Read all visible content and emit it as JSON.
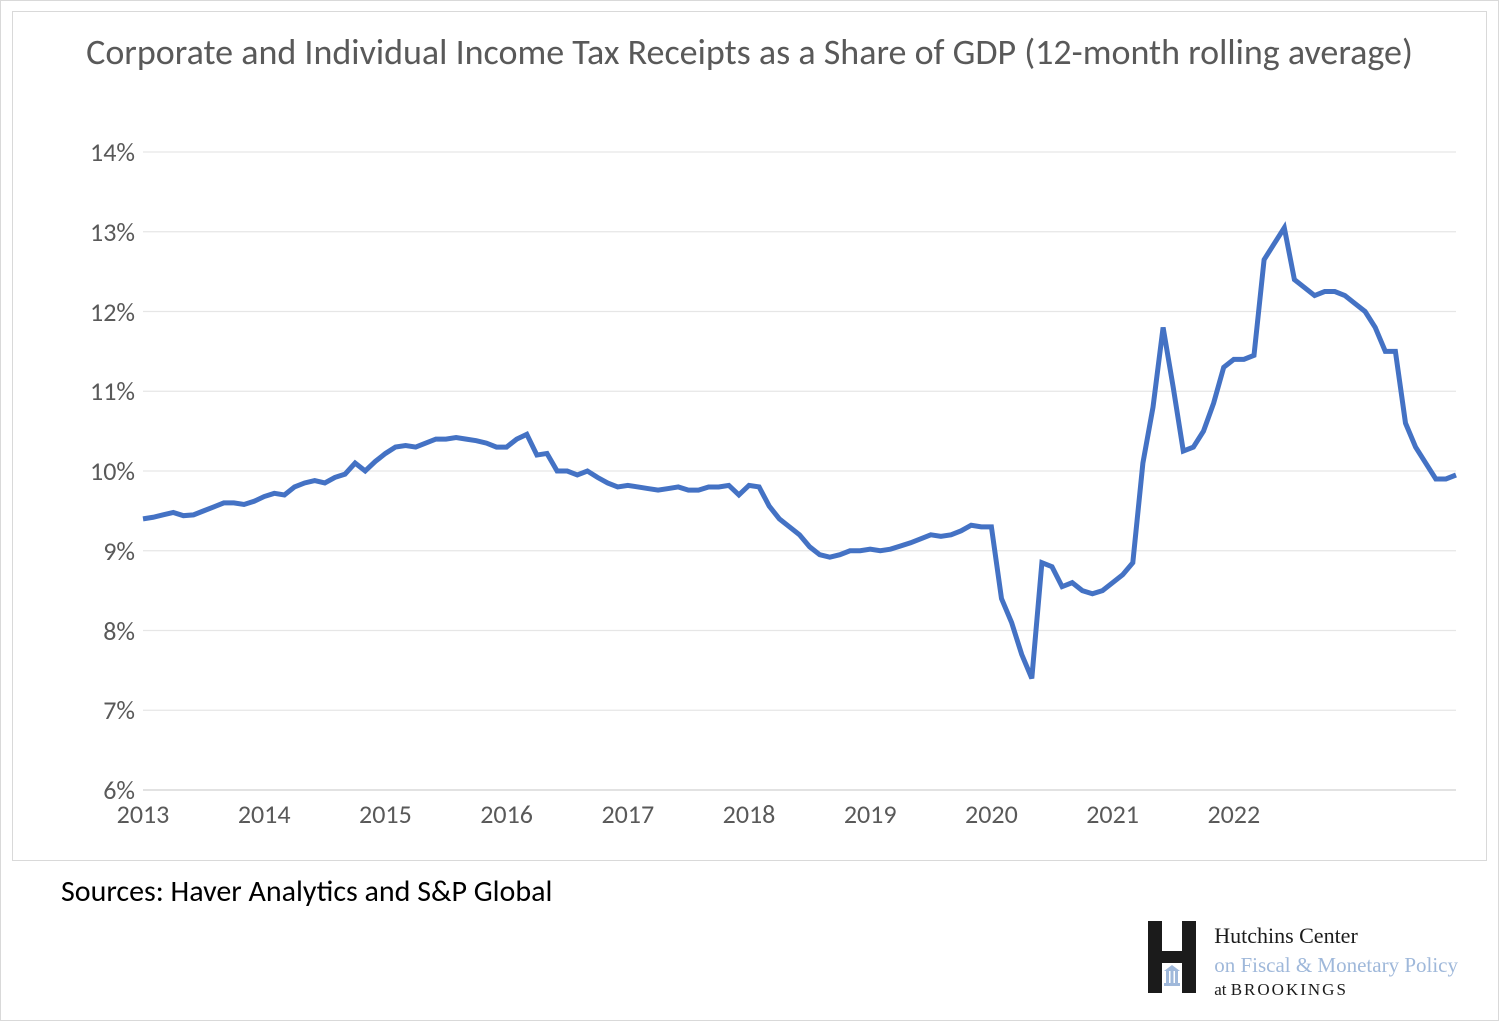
{
  "chart": {
    "type": "line",
    "title": "Corporate and Individual Income Tax Receipts as a Share of GDP (12-month rolling average)",
    "title_fontsize": 36,
    "title_color": "#595959",
    "background_color": "#ffffff",
    "border_color": "#d9d9d9",
    "grid_color": "#e6e6e6",
    "axis_label_color": "#595959",
    "axis_label_fontsize": 26,
    "line_color": "#4472c4",
    "line_width": 5,
    "ylim": [
      6,
      14
    ],
    "ytick_step": 1,
    "y_tick_format": "percent_int",
    "y_ticks": [
      6,
      7,
      8,
      9,
      10,
      11,
      12,
      13,
      14
    ],
    "x_years": [
      2013,
      2014,
      2015,
      2016,
      2017,
      2018,
      2019,
      2020,
      2021,
      2022
    ],
    "x_start_year": 2013,
    "x_end_year": 2023,
    "x_step_months": 1,
    "series": {
      "values_pct": [
        9.4,
        9.42,
        9.45,
        9.48,
        9.44,
        9.45,
        9.5,
        9.55,
        9.6,
        9.6,
        9.58,
        9.62,
        9.68,
        9.72,
        9.7,
        9.8,
        9.85,
        9.88,
        9.85,
        9.92,
        9.96,
        10.1,
        10.0,
        10.12,
        10.22,
        10.3,
        10.32,
        10.3,
        10.35,
        10.4,
        10.4,
        10.42,
        10.4,
        10.38,
        10.35,
        10.3,
        10.3,
        10.4,
        10.46,
        10.2,
        10.22,
        10.0,
        10.0,
        9.95,
        10.0,
        9.92,
        9.85,
        9.8,
        9.82,
        9.8,
        9.78,
        9.76,
        9.78,
        9.8,
        9.76,
        9.76,
        9.8,
        9.8,
        9.82,
        9.7,
        9.82,
        9.8,
        9.56,
        9.4,
        9.3,
        9.2,
        9.05,
        8.95,
        8.92,
        8.95,
        9.0,
        9.0,
        9.02,
        9.0,
        9.02,
        9.06,
        9.1,
        9.15,
        9.2,
        9.18,
        9.2,
        9.25,
        9.32,
        9.3,
        9.3,
        8.4,
        8.1,
        7.7,
        7.4,
        8.85,
        8.8,
        8.55,
        8.6,
        8.5,
        8.46,
        8.5,
        8.6,
        8.7,
        8.85,
        10.1,
        10.8,
        11.8,
        11.05,
        10.25,
        10.3,
        10.5,
        10.85,
        11.3,
        11.4,
        11.4,
        11.45,
        12.65,
        12.85,
        13.05,
        12.4,
        12.3,
        12.2,
        12.25,
        12.25,
        12.2,
        12.1,
        12.0,
        11.8,
        11.5,
        11.5,
        10.6,
        10.3,
        10.1,
        9.9,
        9.9,
        9.95
      ]
    }
  },
  "source_text": "Sources: Haver Analytics and S&P Global",
  "source_fontsize": 30,
  "source_color": "#000000",
  "attribution": {
    "line1": "Hutchins Center",
    "line2": "on Fiscal & Monetary Policy",
    "line3_prefix": "at ",
    "line3_brand": "BROOKINGS",
    "h_color_dark": "#1b1b1b",
    "h_color_accent": "#9fb8da"
  }
}
